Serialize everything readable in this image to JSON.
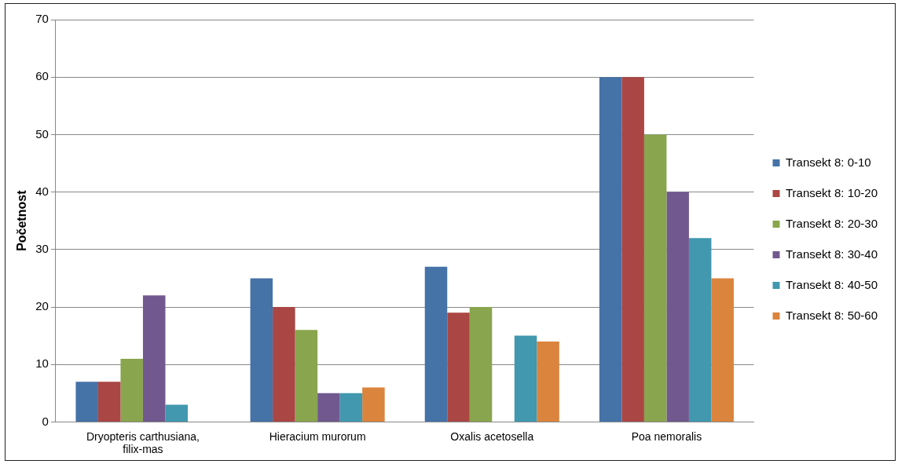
{
  "chart_data": {
    "type": "bar",
    "ylabel": "Početnost",
    "categories": [
      "Dryopteris carthusiana, filix-mas",
      "Hieracium murorum",
      "Oxalis acetosella",
      "Poa nemoralis"
    ],
    "series": [
      {
        "name": "Transekt 8: 0-10",
        "color": "#4572a7",
        "values": [
          7,
          25,
          27,
          60
        ]
      },
      {
        "name": "Transekt 8: 10-20",
        "color": "#aa4643",
        "values": [
          7,
          20,
          19,
          60
        ]
      },
      {
        "name": "Transekt 8: 20-30",
        "color": "#89a54e",
        "values": [
          11,
          16,
          20,
          50
        ]
      },
      {
        "name": "Transekt 8: 30-40",
        "color": "#71588f",
        "values": [
          22,
          5,
          null,
          40
        ]
      },
      {
        "name": "Transekt 8: 40-50",
        "color": "#4198af",
        "values": [
          3,
          5,
          15,
          32
        ]
      },
      {
        "name": "Transekt 8: 50-60",
        "color": "#db843d",
        "values": [
          null,
          6,
          14,
          25
        ]
      }
    ],
    "ylim": [
      0,
      70
    ],
    "yticks": [
      0,
      10,
      20,
      30,
      40,
      50,
      60,
      70
    ],
    "grid": "y",
    "legend": "right"
  }
}
